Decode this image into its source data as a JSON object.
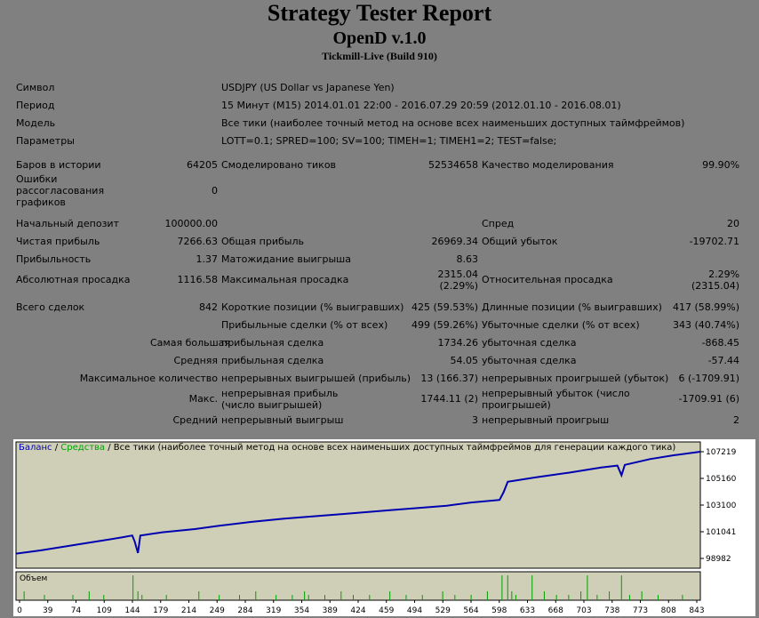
{
  "header": {
    "title": "Strategy Tester Report",
    "expert": "OpenD v.1.0",
    "server": "Tickmill-Live (Build 910)"
  },
  "settings": {
    "symbol_label": "Символ",
    "symbol_value": "USDJPY (US Dollar vs Japanese Yen)",
    "period_label": "Период",
    "period_value": "15 Минут (M15) 2014.01.01 22:00 - 2016.07.29 20:59 (2012.01.10 - 2016.08.01)",
    "model_label": "Модель",
    "model_value": "Все тики (наиболее точный метод на основе всех наименьших доступных таймфреймов)",
    "params_label": "Параметры",
    "params_value": "LOTT=0.1; SPRED=100; SV=100; TIMEH=1; TIMEH1=2; TEST=false;"
  },
  "bars": {
    "bars_label": "Баров в истории",
    "bars_value": "64205",
    "ticks_label": "Смоделировано тиков",
    "ticks_value": "52534658",
    "quality_label": "Качество моделирования",
    "quality_value": "99.90%",
    "errors_label": "Ошибки рассогласования графиков",
    "errors_value": "0"
  },
  "results": {
    "deposit_label": "Начальный депозит",
    "deposit_value": "100000.00",
    "spread_label": "Спред",
    "spread_value": "20",
    "net_label": "Чистая прибыль",
    "net_value": "7266.63",
    "gross_profit_label": "Общая прибыль",
    "gross_profit_value": "26969.34",
    "gross_loss_label": "Общий убыток",
    "gross_loss_value": "-19702.71",
    "pf_label": "Прибыльность",
    "pf_value": "1.37",
    "expected_label": "Матожидание выигрыша",
    "expected_value": "8.63",
    "abs_dd_label": "Абсолютная просадка",
    "abs_dd_value": "1116.58",
    "max_dd_label": "Максимальная просадка",
    "max_dd_value1": "2315.04",
    "max_dd_value2": "(2.29%)",
    "rel_dd_label": "Относительная просадка",
    "rel_dd_value1": "2.29%",
    "rel_dd_value2": "(2315.04)"
  },
  "trades": {
    "total_label": "Всего сделок",
    "total_value": "842",
    "short_label": "Короткие позиции (% выигравших)",
    "short_value": "425 (59.53%)",
    "long_label": "Длинные позиции (% выигравших)",
    "long_value": "417 (58.99%)",
    "profit_trades_label": "Прибыльные сделки (% от всех)",
    "profit_trades_value": "499 (59.26%)",
    "loss_trades_label": "Убыточные сделки (% от всех)",
    "loss_trades_value": "343 (40.74%)",
    "largest_label": "Самая большая",
    "largest_profit_label": "прибыльная сделка",
    "largest_profit_value": "1734.26",
    "largest_loss_label": "убыточная сделка",
    "largest_loss_value": "-868.45",
    "average_label": "Средняя",
    "average_profit_label": "прибыльная сделка",
    "average_profit_value": "54.05",
    "average_loss_label": "убыточная сделка",
    "average_loss_value": "-57.44",
    "max_count_label": "Максимальное количество",
    "max_cons_wins_label": "непрерывных выигрышей (прибыль)",
    "max_cons_wins_value": "13 (166.37)",
    "max_cons_losses_label": "непрерывных проигрышей (убыток)",
    "max_cons_losses_value": "6 (-1709.91)",
    "maximal_label": "Макс.",
    "max_cons_profit_label": "непрерывная прибыль (число выигрышей)",
    "max_cons_profit_value": "1744.11 (2)",
    "max_cons_loss_label": "непрерывный убыток (число проигрышей)",
    "max_cons_loss_value": "-1709.91 (6)",
    "avg_cons_label": "Средний",
    "avg_cons_wins_label": "непрерывный выигрыш",
    "avg_cons_wins_value": "3",
    "avg_cons_losses_label": "непрерывный проигрыш",
    "avg_cons_losses_value": "2"
  },
  "chart_data": {
    "type": "line",
    "legend_balance": "Баланс",
    "legend_sep": "/",
    "legend_equity": "Средства",
    "legend_rest": "/ Все тики (наиболее точный метод на основе всех наименьших доступных таймфреймов для генерации каждого тика)",
    "volume_label": "Объем",
    "ylim": [
      98982,
      107219
    ],
    "xlim": [
      0,
      842
    ],
    "y_ticks": [
      "107219",
      "105160",
      "103100",
      "101041",
      "98982"
    ],
    "x_ticks": [
      "0",
      "39",
      "74",
      "109",
      "144",
      "179",
      "214",
      "249",
      "284",
      "319",
      "354",
      "389",
      "424",
      "459",
      "494",
      "529",
      "564",
      "598",
      "633",
      "668",
      "703",
      "738",
      "773",
      "808",
      "843"
    ],
    "series": [
      {
        "name": "Баланс",
        "color": "#0000b0",
        "points": [
          [
            0,
            99350
          ],
          [
            30,
            99600
          ],
          [
            60,
            99900
          ],
          [
            90,
            100200
          ],
          [
            130,
            100600
          ],
          [
            143,
            100750
          ],
          [
            146,
            100300
          ],
          [
            150,
            99400
          ],
          [
            153,
            100750
          ],
          [
            180,
            101000
          ],
          [
            220,
            101250
          ],
          [
            250,
            101500
          ],
          [
            290,
            101800
          ],
          [
            330,
            102050
          ],
          [
            370,
            102250
          ],
          [
            400,
            102400
          ],
          [
            430,
            102550
          ],
          [
            460,
            102700
          ],
          [
            490,
            102850
          ],
          [
            530,
            103050
          ],
          [
            560,
            103300
          ],
          [
            595,
            103500
          ],
          [
            600,
            104100
          ],
          [
            605,
            104900
          ],
          [
            640,
            105250
          ],
          [
            680,
            105600
          ],
          [
            720,
            106000
          ],
          [
            740,
            106150
          ],
          [
            745,
            105400
          ],
          [
            749,
            106200
          ],
          [
            780,
            106650
          ],
          [
            810,
            106950
          ],
          [
            842,
            107219
          ]
        ]
      },
      {
        "name": "Средства",
        "color": "#00a000",
        "points": []
      }
    ],
    "volume_spikes_x": [
      10,
      35,
      70,
      90,
      108,
      144,
      150,
      155,
      185,
      225,
      250,
      275,
      295,
      320,
      340,
      355,
      360,
      380,
      400,
      415,
      435,
      460,
      480,
      500,
      525,
      540,
      560,
      580,
      598,
      605,
      610,
      615,
      635,
      650,
      665,
      680,
      695,
      703,
      715,
      730,
      745,
      755,
      770,
      790,
      820
    ]
  }
}
